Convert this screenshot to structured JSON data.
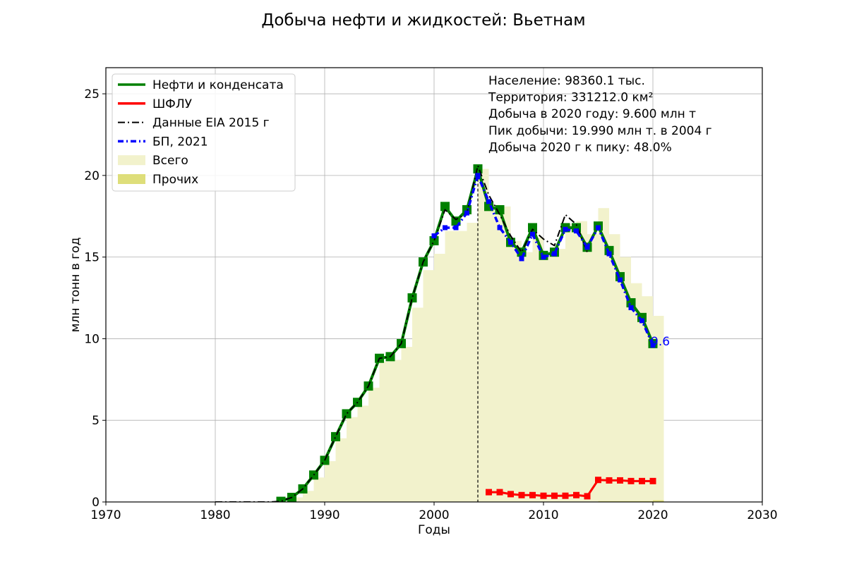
{
  "chart_data": {
    "type": "line",
    "title": "Добыча нефти и жидкостей: Вьетнам",
    "xlabel": "Годы",
    "ylabel": "млн тонн в год",
    "xlim": [
      1970,
      2030
    ],
    "ylim": [
      0,
      26.6
    ],
    "x_ticks": [
      "1970",
      "1980",
      "1990",
      "2000",
      "2010",
      "2020",
      "2030"
    ],
    "y_ticks": [
      "0",
      "5",
      "10",
      "15",
      "20",
      "25"
    ],
    "grid": true,
    "legend_position": "top-left",
    "peak_line_year": 2004,
    "end_label": "9.6",
    "info_lines": [
      "Население: 98360.1 тыс.",
      "Территория: 331212.0 км²",
      "Добыча в 2020 году: 9.600 млн т",
      "Пик добычи: 19.990 млн т. в 2004 г",
      "Добыча 2020 г к пику: 48.0%"
    ],
    "legend": [
      {
        "label": "Нефти и конденсата",
        "kind": "line",
        "color": "#008000",
        "dash": ""
      },
      {
        "label": "ШФЛУ",
        "kind": "line",
        "color": "#ff0000",
        "dash": ""
      },
      {
        "label": "Данные EIA 2015 г",
        "kind": "line",
        "color": "#000000",
        "dash": "10,4,2,4"
      },
      {
        "label": "БП, 2021",
        "kind": "line",
        "color": "#0000ff",
        "dash": "8,4,2,4"
      },
      {
        "label": "Всего",
        "kind": "patch",
        "color": "#f2f2cc"
      },
      {
        "label": "Прочих",
        "kind": "patch",
        "color": "#dede7a"
      }
    ],
    "bars_total": {
      "name": "Всего",
      "color": "#f2f2cc",
      "x": [
        1986,
        1987,
        1988,
        1989,
        1990,
        1991,
        1992,
        1993,
        1994,
        1995,
        1996,
        1997,
        1998,
        1999,
        2000,
        2001,
        2002,
        2003,
        2004,
        2005,
        2006,
        2007,
        2008,
        2009,
        2010,
        2011,
        2012,
        2013,
        2014,
        2015,
        2016,
        2017,
        2018,
        2019,
        2020
      ],
      "values": [
        0.04,
        0.28,
        0.68,
        1.5,
        2.5,
        3.9,
        5.2,
        5.9,
        7.0,
        8.6,
        8.7,
        9.5,
        11.9,
        14.2,
        15.2,
        16.6,
        16.6,
        17.1,
        20.4,
        18.2,
        18.1,
        16.0,
        15.3,
        16.2,
        15.3,
        15.5,
        17.0,
        17.2,
        16.4,
        18.0,
        16.4,
        15.0,
        13.4,
        12.6,
        11.4
      ]
    },
    "bars_other": {
      "name": "Прочих",
      "color": "#dede7a",
      "x": [
        2015,
        2016,
        2017,
        2018,
        2019,
        2020
      ],
      "values": [
        0.05,
        0.05,
        0.05,
        0.05,
        0.05,
        0.1
      ]
    },
    "series": [
      {
        "name": "Нефти и конденсата",
        "color": "#008000",
        "x": [
          1986,
          1987,
          1988,
          1989,
          1990,
          1991,
          1992,
          1993,
          1994,
          1995,
          1996,
          1997,
          1998,
          1999,
          2000,
          2001,
          2002,
          2003,
          2004,
          2005,
          2006,
          2007,
          2008,
          2009,
          2010,
          2011,
          2012,
          2013,
          2014,
          2015,
          2016,
          2017,
          2018,
          2019,
          2020
        ],
        "values": [
          0.04,
          0.28,
          0.8,
          1.65,
          2.55,
          4.0,
          5.4,
          6.1,
          7.1,
          8.8,
          8.9,
          9.7,
          12.5,
          14.7,
          16.0,
          18.1,
          17.2,
          17.9,
          20.4,
          18.1,
          17.9,
          15.9,
          15.3,
          16.8,
          15.1,
          15.3,
          16.8,
          16.8,
          15.6,
          16.9,
          15.4,
          13.8,
          12.2,
          11.3,
          9.7
        ]
      },
      {
        "name": "ШФЛУ",
        "color": "#ff0000",
        "x": [
          2005,
          2006,
          2007,
          2008,
          2009,
          2010,
          2011,
          2012,
          2013,
          2014,
          2015,
          2016,
          2017,
          2018,
          2019,
          2020
        ],
        "values": [
          0.6,
          0.6,
          0.48,
          0.42,
          0.42,
          0.38,
          0.38,
          0.38,
          0.42,
          0.35,
          1.35,
          1.32,
          1.32,
          1.28,
          1.28,
          1.28
        ]
      },
      {
        "name": "Данные EIA 2015 г",
        "color": "#000000",
        "x": [
          1980,
          1981,
          1982,
          1983,
          1984,
          1985,
          1986,
          1987,
          1988,
          1989,
          1990,
          1991,
          1992,
          1993,
          1994,
          1995,
          1996,
          1997,
          1998,
          1999,
          2000,
          2001,
          2002,
          2003,
          2004,
          2005,
          2006,
          2007,
          2008,
          2009,
          2010,
          2011,
          2012,
          2013,
          2014
        ],
        "values": [
          0.0,
          0.0,
          0.0,
          0.0,
          0.0,
          0.0,
          0.04,
          0.28,
          0.8,
          1.65,
          2.55,
          4.0,
          5.4,
          6.1,
          7.1,
          8.8,
          8.9,
          9.7,
          12.5,
          14.7,
          16.0,
          17.9,
          17.3,
          17.7,
          20.6,
          18.8,
          17.6,
          16.3,
          15.3,
          16.7,
          16.1,
          15.7,
          17.6,
          17.0,
          15.3
        ]
      },
      {
        "name": "БП, 2021",
        "color": "#0000ff",
        "x": [
          2000,
          2001,
          2002,
          2003,
          2004,
          2005,
          2006,
          2007,
          2008,
          2009,
          2010,
          2011,
          2012,
          2013,
          2014,
          2015,
          2016,
          2017,
          2018,
          2019,
          2020
        ],
        "values": [
          16.3,
          16.8,
          16.8,
          17.7,
          20.0,
          18.4,
          16.8,
          15.9,
          14.9,
          16.4,
          15.0,
          15.2,
          16.7,
          16.6,
          15.6,
          16.8,
          15.2,
          13.6,
          11.9,
          11.1,
          9.6
        ]
      }
    ]
  }
}
